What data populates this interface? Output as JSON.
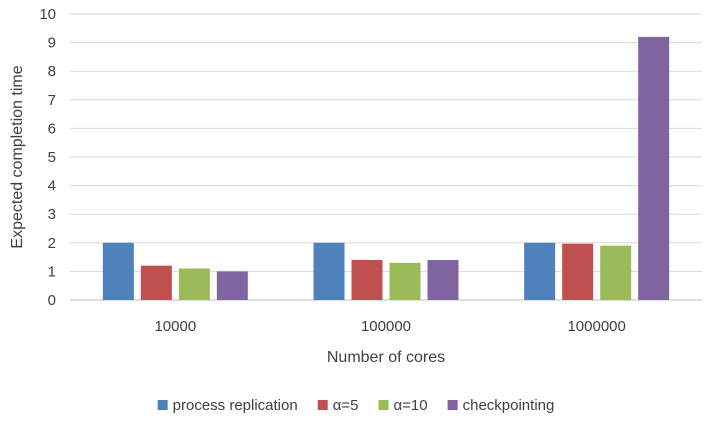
{
  "chart_data": {
    "type": "bar",
    "title": "",
    "xlabel": "Number of cores",
    "ylabel": "Expected completion time",
    "ylim": [
      0,
      10
    ],
    "yticks": [
      0,
      1,
      2,
      3,
      4,
      5,
      6,
      7,
      8,
      9,
      10
    ],
    "categories": [
      "10000",
      "100000",
      "1000000"
    ],
    "series": [
      {
        "name": "process replication",
        "color": "#4F81BD",
        "values": [
          2.0,
          2.0,
          2.0
        ]
      },
      {
        "name": "α=5",
        "color": "#C0504D",
        "values": [
          1.2,
          1.4,
          1.97
        ]
      },
      {
        "name": "α=10",
        "color": "#9BBB59",
        "values": [
          1.1,
          1.3,
          1.9
        ]
      },
      {
        "name": "checkpointing",
        "color": "#8064A2",
        "values": [
          1.0,
          1.4,
          9.2
        ]
      }
    ],
    "grid": true,
    "legend_position": "bottom"
  }
}
